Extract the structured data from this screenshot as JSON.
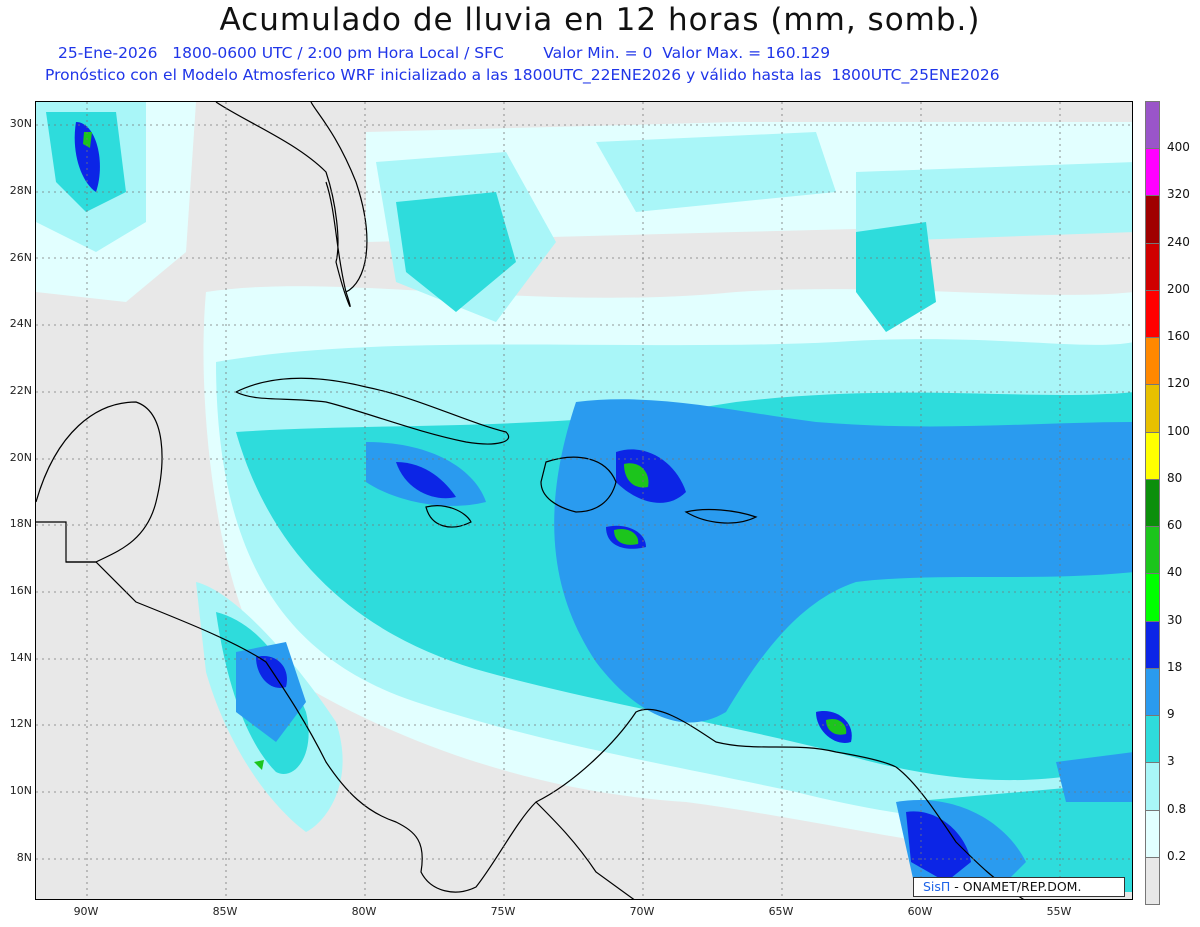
{
  "header": {
    "title": "Acumulado de lluvia en 12 horas (mm, somb.)",
    "line1": "25-Ene-2026   1800-0600 UTC / 2:00 pm Hora Local / SFC        Valor Min. = 0  Valor Max. = 160.129",
    "line2": "Pronóstico con el Modelo Atmosferico WRF inicializado a las 1800UTC_22ENE2026 y válido hasta las  1800UTC_25ENE2026"
  },
  "axes": {
    "lat_labels": [
      "30N",
      "28N",
      "26N",
      "24N",
      "22N",
      "20N",
      "18N",
      "16N",
      "14N",
      "12N",
      "10N",
      "8N"
    ],
    "lon_labels": [
      "90W",
      "85W",
      "80W",
      "75W",
      "70W",
      "65W",
      "60W",
      "55W"
    ]
  },
  "colorbar": {
    "levels": [
      "0.2",
      "0.8",
      "3",
      "9",
      "18",
      "30",
      "40",
      "60",
      "80",
      "100",
      "120",
      "160",
      "200",
      "240",
      "320",
      "400"
    ],
    "colors": [
      "#e8e8e8",
      "#e2ffff",
      "#a9f6f8",
      "#2edcdc",
      "#2a9bef",
      "#0c25e6",
      "#00ff00",
      "#1cc51c",
      "#0b8f0b",
      "#ffff00",
      "#e8c000",
      "#ff8800",
      "#ff0000",
      "#d00000",
      "#a00000",
      "#ff00ff",
      "#9a55c9"
    ]
  },
  "credit": {
    "brand": "SisΠ",
    "text": " - ONAMET/REP.DOM."
  },
  "map": {
    "lon_range": [
      -92,
      -52.5
    ],
    "lat_range": [
      6.9,
      30.4
    ],
    "features": [
      "coastlines",
      "rain-shading",
      "dotted-grid"
    ]
  }
}
